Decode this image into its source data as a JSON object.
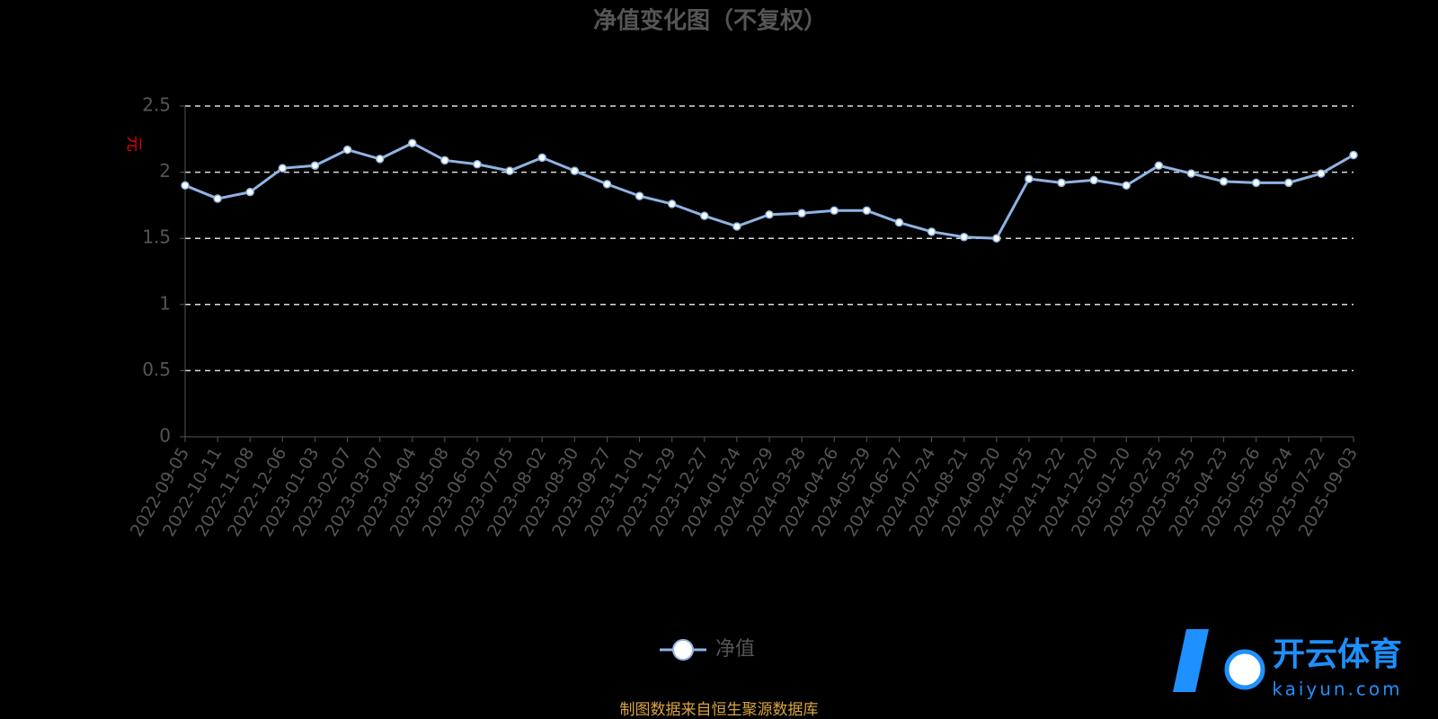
{
  "chart_data": {
    "type": "line",
    "title": "净值变化图（不复权）",
    "y_label": "元",
    "categories": [
      "2022-09-05",
      "2022-10-11",
      "2022-11-08",
      "2022-12-06",
      "2023-01-03",
      "2023-02-07",
      "2023-03-07",
      "2023-04-04",
      "2023-05-08",
      "2023-06-05",
      "2023-07-05",
      "2023-08-02",
      "2023-08-30",
      "2023-09-27",
      "2023-11-01",
      "2023-11-29",
      "2023-12-27",
      "2024-01-24",
      "2024-02-29",
      "2024-03-28",
      "2024-04-26",
      "2024-05-29",
      "2024-06-27",
      "2024-07-24",
      "2024-08-21",
      "2024-09-20",
      "2024-10-25",
      "2024-11-22",
      "2024-12-20",
      "2025-01-20",
      "2025-02-25",
      "2025-03-25",
      "2025-04-23",
      "2025-05-26",
      "2025-06-24",
      "2025-07-22",
      "2025-09-03"
    ],
    "series": [
      {
        "name": "净值",
        "color": "#8fb4e3",
        "values": [
          1.9,
          1.8,
          1.85,
          2.03,
          2.05,
          2.17,
          2.1,
          2.22,
          2.09,
          2.06,
          2.01,
          2.11,
          2.01,
          1.91,
          1.82,
          1.76,
          1.67,
          1.59,
          1.68,
          1.69,
          1.71,
          1.71,
          1.62,
          1.55,
          1.51,
          1.5,
          1.95,
          1.92,
          1.94,
          1.9,
          2.05,
          1.99,
          1.93,
          1.92,
          1.92,
          1.99,
          2.13
        ]
      }
    ],
    "ylim": [
      0,
      2.5
    ],
    "yticks": [
      0,
      0.5,
      1,
      1.5,
      2,
      2.5
    ],
    "grid": true,
    "source": "制图数据来自恒生聚源数据库"
  },
  "watermark": {
    "brand": "开云体育",
    "site": "kaiyun.com"
  }
}
